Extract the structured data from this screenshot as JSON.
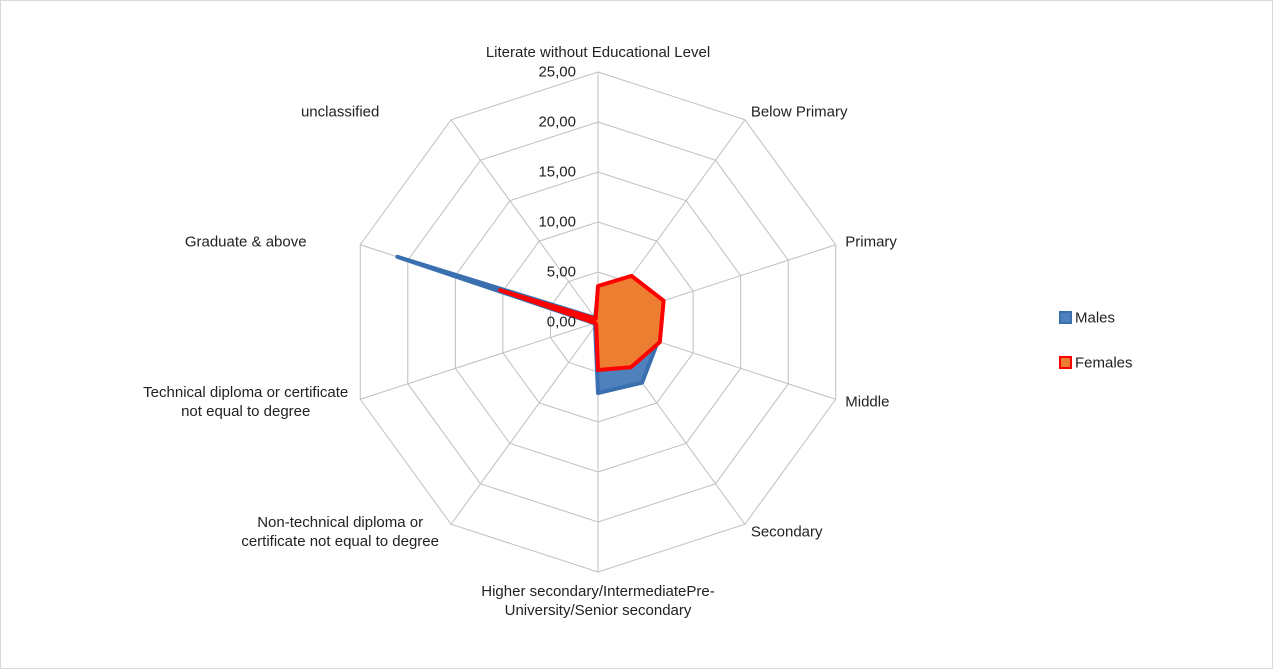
{
  "chart_data": {
    "type": "radar",
    "categories": [
      "Literate without Educational Level",
      "Below Primary",
      "Primary",
      "Middle",
      "Secondary",
      "Higher secondary/IntermediatePre-University/Senior secondary",
      "Non-technical diploma or certificate not equal to degree",
      "Technical diploma or certificate not equal to degree",
      "Graduate & above",
      "unclassified"
    ],
    "series": [
      {
        "name": "Males",
        "color": "#3a6fb0",
        "fill": "#4f81bd",
        "values": [
          3.0,
          5.5,
          6.5,
          6.3,
          7.5,
          7.1,
          0.5,
          0.4,
          21.1,
          0.5
        ]
      },
      {
        "name": "Females",
        "color": "#ff0000",
        "fill": "#ed7d31",
        "values": [
          3.6,
          5.7,
          6.9,
          6.5,
          5.6,
          4.8,
          0.3,
          0.3,
          10.3,
          0.4
        ]
      }
    ],
    "ylim": [
      0,
      25
    ],
    "yticks": [
      {
        "value": 0,
        "label": "0,00"
      },
      {
        "value": 5,
        "label": "5,00"
      },
      {
        "value": 10,
        "label": "10,00"
      },
      {
        "value": 15,
        "label": "15,00"
      },
      {
        "value": 20,
        "label": "20,00"
      },
      {
        "value": 25,
        "label": "25,00"
      }
    ],
    "grid": true,
    "legend": "right"
  }
}
